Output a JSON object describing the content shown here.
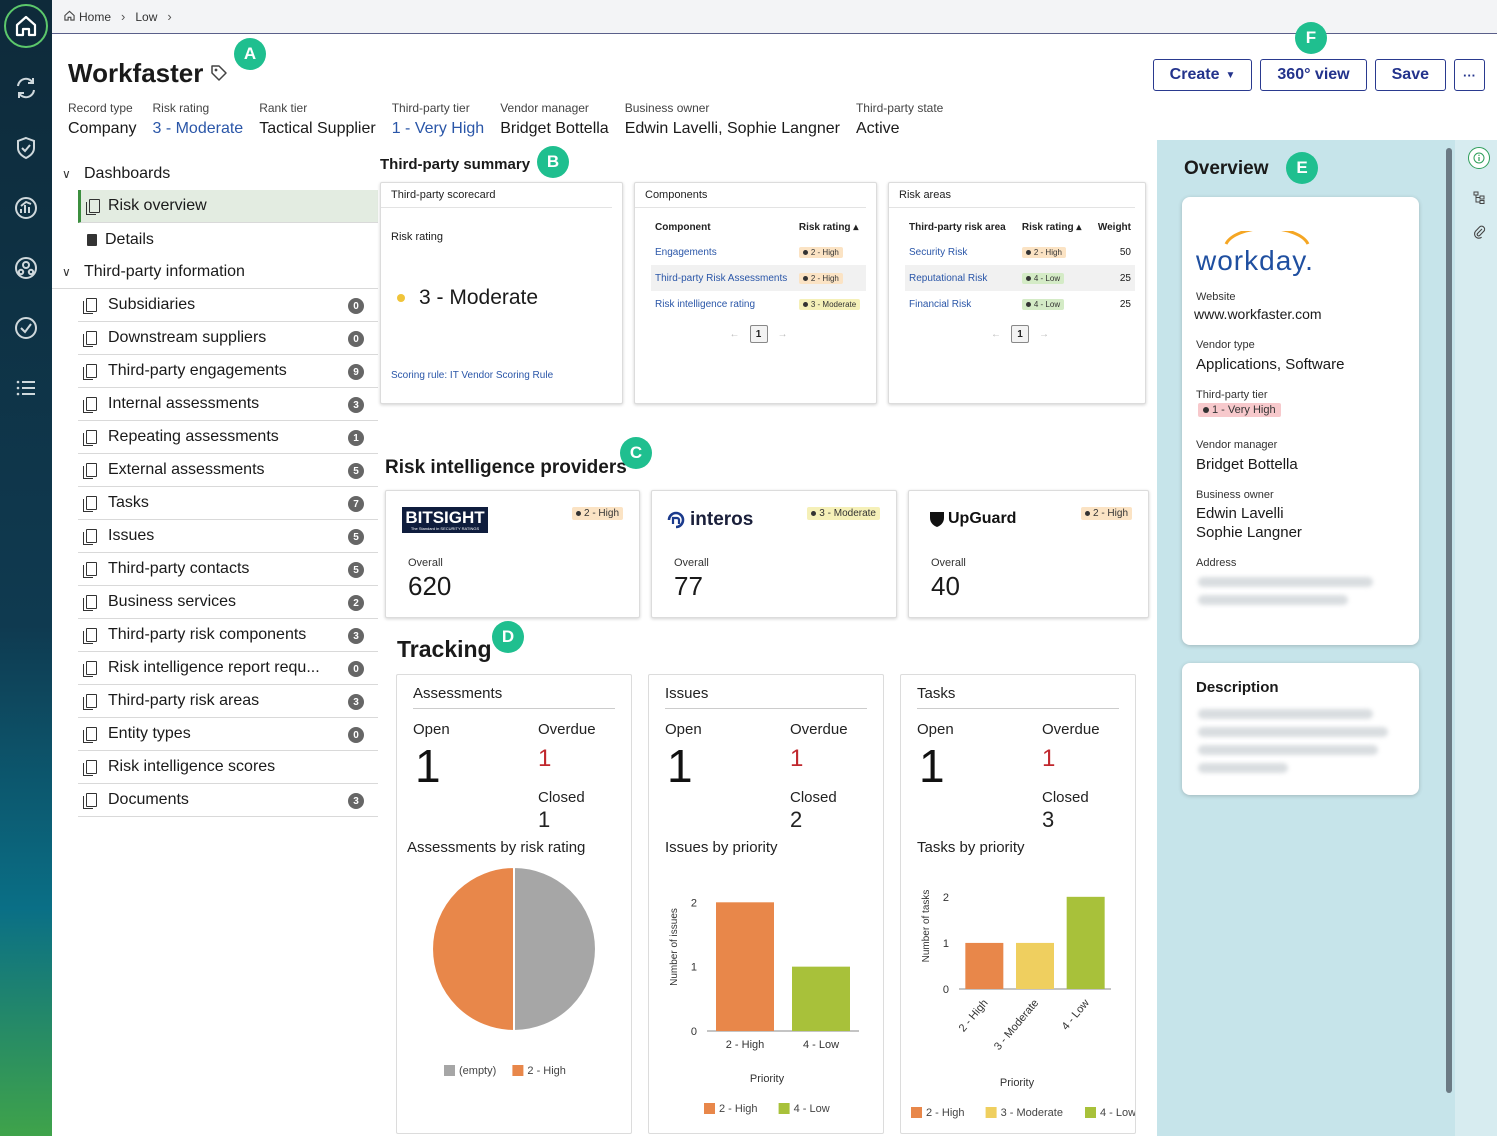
{
  "breadcrumb": {
    "home": "Home",
    "level1": "Low"
  },
  "header": {
    "title": "Workfaster",
    "markers": {
      "a": "A",
      "b": "B",
      "c": "C",
      "d": "D",
      "e": "E",
      "f": "F"
    }
  },
  "actions": {
    "create": "Create",
    "view360": "360° view",
    "save": "Save",
    "more": "···"
  },
  "meta": [
    {
      "label": "Record type",
      "value": "Company"
    },
    {
      "label": "Risk rating",
      "value": "3 - Moderate"
    },
    {
      "label": "Rank tier",
      "value": "Tactical Supplier"
    },
    {
      "label": "Third-party tier",
      "value": "1 - Very High"
    },
    {
      "label": "Vendor manager",
      "value": "Bridget Bottella"
    },
    {
      "label": "Business owner",
      "value": "Edwin Lavelli, Sophie Langner"
    },
    {
      "label": "Third-party state",
      "value": "Active"
    }
  ],
  "nav": {
    "dashboards": "Dashboards",
    "risk_overview": "Risk overview",
    "details": "Details",
    "third_party_info": "Third-party information",
    "items": [
      {
        "label": "Subsidiaries",
        "count": "0"
      },
      {
        "label": "Downstream suppliers",
        "count": "0"
      },
      {
        "label": "Third-party engagements",
        "count": "9"
      },
      {
        "label": "Internal assessments",
        "count": "3"
      },
      {
        "label": "Repeating assessments",
        "count": "1"
      },
      {
        "label": "External assessments",
        "count": "5"
      },
      {
        "label": "Tasks",
        "count": "7"
      },
      {
        "label": "Issues",
        "count": "5"
      },
      {
        "label": "Third-party contacts",
        "count": "5"
      },
      {
        "label": "Business services",
        "count": "2"
      },
      {
        "label": "Third-party risk components",
        "count": "3"
      },
      {
        "label": "Risk intelligence report requ...",
        "count": "0"
      },
      {
        "label": "Third-party risk areas",
        "count": "3"
      },
      {
        "label": "Entity types",
        "count": "0"
      },
      {
        "label": "Risk intelligence scores",
        "count": ""
      },
      {
        "label": "Documents",
        "count": "3"
      }
    ]
  },
  "summary": {
    "title": "Third-party summary",
    "scorecard": {
      "head": "Third-party scorecard",
      "label": "Risk rating",
      "value": "3 - Moderate",
      "rule": "Scoring rule: IT Vendor Scoring Rule"
    },
    "components": {
      "head": "Components",
      "col1": "Component",
      "col2": "Risk rating ▴",
      "rows": [
        {
          "name": "Engagements",
          "rating": "2 - High"
        },
        {
          "name": "Third-party Risk Assessments",
          "rating": "2 - High"
        },
        {
          "name": "Risk intelligence rating",
          "rating": "3 - Moderate"
        }
      ],
      "page": "1",
      "prev": "←",
      "next": "→"
    },
    "areas": {
      "head": "Risk areas",
      "col1": "Third-party risk area",
      "col2": "Risk rating ▴",
      "col3": "Weight",
      "rows": [
        {
          "name": "Security Risk",
          "rating": "2 - High",
          "weight": "50"
        },
        {
          "name": "Reputational Risk",
          "rating": "4 - Low",
          "weight": "25"
        },
        {
          "name": "Financial Risk",
          "rating": "4 - Low",
          "weight": "25"
        }
      ],
      "page": "1",
      "prev": "←",
      "next": "→"
    }
  },
  "providers": {
    "title": "Risk intelligence providers",
    "overall_label": "Overall",
    "items": [
      {
        "name": "BITSIGHT",
        "tagline": "The Standard in SECURITY RATINGS",
        "rating": "2 - High",
        "score": "620"
      },
      {
        "name": "interos",
        "rating": "3 - Moderate",
        "score": "77"
      },
      {
        "name": "UpGuard",
        "rating": "2 - High",
        "score": "40"
      }
    ]
  },
  "tracking": {
    "title": "Tracking",
    "labels": {
      "open": "Open",
      "overdue": "Overdue",
      "closed": "Closed"
    },
    "assessments": {
      "title": "Assessments",
      "open": "1",
      "overdue": "1",
      "closed": "1",
      "chart_title": "Assessments by risk rating"
    },
    "issues": {
      "title": "Issues",
      "open": "1",
      "overdue": "1",
      "closed": "2",
      "chart_title": "Issues by priority"
    },
    "tasks": {
      "title": "Tasks",
      "open": "1",
      "overdue": "1",
      "closed": "3",
      "chart_title": "Tasks by priority"
    }
  },
  "chart_data": [
    {
      "type": "pie",
      "title": "Assessments by risk rating",
      "categories": [
        "(empty)",
        "2 - High"
      ],
      "values": [
        1,
        1
      ],
      "colors": [
        "#a6a6a6",
        "#e8874a"
      ],
      "legend": "bottom"
    },
    {
      "type": "bar",
      "title": "Issues by priority",
      "xlabel": "Priority",
      "ylabel": "Number of issues",
      "categories": [
        "2 - High",
        "4 - Low"
      ],
      "values": [
        2,
        1
      ],
      "colors": [
        "#e8874a",
        "#a8c13a"
      ],
      "yticks": [
        0,
        1,
        2
      ],
      "ylim": [
        0,
        2.3
      ],
      "legend": "bottom"
    },
    {
      "type": "bar",
      "title": "Tasks by priority",
      "xlabel": "Priority",
      "ylabel": "Number of tasks",
      "categories": [
        "2 - High",
        "3 - Moderate",
        "4 - Low"
      ],
      "values": [
        1,
        1,
        2
      ],
      "colors": [
        "#e8874a",
        "#efcf5f",
        "#a8c13a"
      ],
      "yticks": [
        0,
        1,
        2
      ],
      "ylim": [
        0,
        2.3
      ],
      "legend": "bottom"
    }
  ],
  "overview": {
    "title": "Overview",
    "logo": "workday.",
    "website_label": "Website",
    "website": "www.workfaster.com",
    "vendor_type_label": "Vendor type",
    "vendor_type": "Applications, Software",
    "tier_label": "Third-party tier",
    "tier": "1 - Very High",
    "manager_label": "Vendor manager",
    "manager": "Bridget Bottella",
    "owner_label": "Business owner",
    "owner1": "Edwin Lavelli",
    "owner2": "Sophie Langner",
    "address_label": "Address",
    "description_label": "Description"
  },
  "colors": {
    "accent": "#23338c",
    "link": "#2a56a8",
    "marker": "#1fbf8f",
    "panel": "#c6e4ea"
  }
}
